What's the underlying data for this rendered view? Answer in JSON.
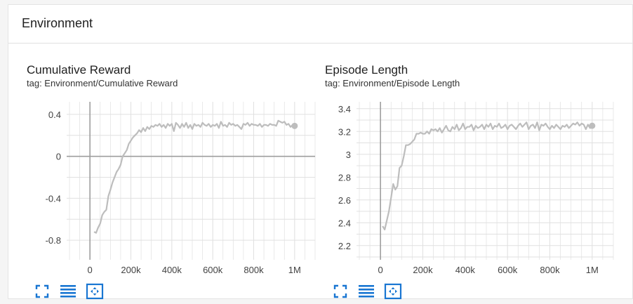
{
  "section": {
    "title": "Environment"
  },
  "charts": [
    {
      "title": "Cumulative Reward",
      "tag": "tag: Environment/Cumulative Reward",
      "toolbar": {
        "fit_icon": "fullscreen-icon",
        "toggle_icon": "lines-icon",
        "zoom_icon": "fit-domain-icon"
      }
    },
    {
      "title": "Episode Length",
      "tag": "tag: Environment/Episode Length",
      "toolbar": {
        "fit_icon": "fullscreen-icon",
        "toggle_icon": "lines-icon",
        "zoom_icon": "fit-domain-icon"
      }
    }
  ],
  "colors": {
    "accent": "#1976d2",
    "series": "#bdbdbd",
    "grid": "#e0e0e0",
    "axis": "#9e9e9e"
  },
  "chart_data": [
    {
      "type": "line",
      "title": "Cumulative Reward",
      "xlabel": "",
      "ylabel": "",
      "xlim": [
        -100000,
        1100000
      ],
      "ylim": [
        -0.96,
        0.52
      ],
      "xticks": [
        0,
        200000,
        400000,
        600000,
        800000,
        1000000
      ],
      "xtick_labels": [
        "0",
        "200k",
        "400k",
        "600k",
        "800k",
        "1M"
      ],
      "yticks": [
        -0.8,
        -0.4,
        0,
        0.4
      ],
      "ytick_labels": [
        "-0.8",
        "-0.4",
        "0",
        "0.4"
      ],
      "grid": true,
      "series": [
        {
          "x": [
            20000,
            30000,
            40000,
            50000,
            60000,
            70000,
            80000,
            90000,
            100000,
            110000,
            120000,
            130000,
            140000,
            150000,
            160000,
            170000,
            180000,
            190000,
            200000,
            210000,
            220000,
            230000,
            240000,
            250000,
            260000,
            270000,
            280000,
            290000,
            300000,
            310000,
            320000,
            330000,
            340000,
            350000,
            360000,
            370000,
            380000,
            390000,
            400000,
            410000,
            420000,
            430000,
            440000,
            450000,
            460000,
            470000,
            480000,
            490000,
            500000,
            510000,
            520000,
            530000,
            540000,
            550000,
            560000,
            570000,
            580000,
            590000,
            600000,
            610000,
            620000,
            630000,
            640000,
            650000,
            660000,
            670000,
            680000,
            690000,
            700000,
            710000,
            720000,
            730000,
            740000,
            750000,
            760000,
            770000,
            780000,
            790000,
            800000,
            810000,
            820000,
            830000,
            840000,
            850000,
            860000,
            870000,
            880000,
            890000,
            900000,
            910000,
            920000,
            930000,
            940000,
            950000,
            960000,
            970000,
            980000,
            990000,
            1000000
          ],
          "values": [
            -0.72,
            -0.73,
            -0.68,
            -0.64,
            -0.56,
            -0.53,
            -0.51,
            -0.38,
            -0.32,
            -0.25,
            -0.2,
            -0.15,
            -0.12,
            -0.08,
            0,
            0.03,
            0.06,
            0.12,
            0.15,
            0.18,
            0.2,
            0.22,
            0.25,
            0.23,
            0.27,
            0.24,
            0.28,
            0.26,
            0.29,
            0.28,
            0.3,
            0.29,
            0.31,
            0.28,
            0.3,
            0.27,
            0.31,
            0.29,
            0.31,
            0.24,
            0.32,
            0.3,
            0.27,
            0.31,
            0.28,
            0.32,
            0.27,
            0.3,
            0.26,
            0.31,
            0.29,
            0.3,
            0.28,
            0.32,
            0.3,
            0.29,
            0.31,
            0.28,
            0.3,
            0.29,
            0.31,
            0.27,
            0.33,
            0.29,
            0.3,
            0.28,
            0.32,
            0.3,
            0.31,
            0.29,
            0.3,
            0.28,
            0.26,
            0.31,
            0.3,
            0.32,
            0.29,
            0.31,
            0.3,
            0.3,
            0.29,
            0.31,
            0.28,
            0.3,
            0.3,
            0.29,
            0.31,
            0.3,
            0.3,
            0.29,
            0.34,
            0.33,
            0.32,
            0.33,
            0.3,
            0.31,
            0.28,
            0.3,
            0.29
          ]
        }
      ]
    },
    {
      "type": "line",
      "title": "Episode Length",
      "xlabel": "",
      "ylabel": "",
      "xlim": [
        -100000,
        1100000
      ],
      "ylim": [
        2.1,
        3.46
      ],
      "xticks": [
        0,
        200000,
        400000,
        600000,
        800000,
        1000000
      ],
      "xtick_labels": [
        "0",
        "200k",
        "400k",
        "600k",
        "800k",
        "1M"
      ],
      "yticks": [
        2.2,
        2.4,
        2.6,
        2.8,
        3.0,
        3.2,
        3.4
      ],
      "ytick_labels": [
        "2.2",
        "2.4",
        "2.6",
        "2.8",
        "3",
        "3.2",
        "3.4"
      ],
      "grid": true,
      "series": [
        {
          "x": [
            10000,
            20000,
            30000,
            40000,
            50000,
            60000,
            70000,
            80000,
            90000,
            100000,
            110000,
            120000,
            130000,
            140000,
            150000,
            160000,
            170000,
            180000,
            190000,
            200000,
            210000,
            220000,
            230000,
            240000,
            250000,
            260000,
            270000,
            280000,
            290000,
            300000,
            310000,
            320000,
            330000,
            340000,
            350000,
            360000,
            370000,
            380000,
            390000,
            400000,
            410000,
            420000,
            430000,
            440000,
            450000,
            460000,
            470000,
            480000,
            490000,
            500000,
            510000,
            520000,
            530000,
            540000,
            550000,
            560000,
            570000,
            580000,
            590000,
            600000,
            610000,
            620000,
            630000,
            640000,
            650000,
            660000,
            670000,
            680000,
            690000,
            700000,
            710000,
            720000,
            730000,
            740000,
            750000,
            760000,
            770000,
            780000,
            790000,
            800000,
            810000,
            820000,
            830000,
            840000,
            850000,
            860000,
            870000,
            880000,
            890000,
            900000,
            910000,
            920000,
            930000,
            940000,
            950000,
            960000,
            970000,
            980000,
            990000,
            1000000
          ],
          "values": [
            2.37,
            2.34,
            2.42,
            2.5,
            2.62,
            2.74,
            2.69,
            2.72,
            2.88,
            2.9,
            2.98,
            3.08,
            3.08,
            3.09,
            3.11,
            3.13,
            3.18,
            3.18,
            3.19,
            3.18,
            3.18,
            3.2,
            3.18,
            3.22,
            3.21,
            3.22,
            3.2,
            3.23,
            3.19,
            3.22,
            3.25,
            3.21,
            3.2,
            3.24,
            3.22,
            3.26,
            3.21,
            3.23,
            3.27,
            3.22,
            3.24,
            3.24,
            3.26,
            3.21,
            3.25,
            3.23,
            3.24,
            3.26,
            3.22,
            3.26,
            3.24,
            3.27,
            3.22,
            3.25,
            3.24,
            3.27,
            3.23,
            3.24,
            3.26,
            3.22,
            3.25,
            3.26,
            3.24,
            3.22,
            3.25,
            3.27,
            3.24,
            3.26,
            3.28,
            3.22,
            3.25,
            3.26,
            3.23,
            3.28,
            3.21,
            3.26,
            3.25,
            3.27,
            3.24,
            3.22,
            3.25,
            3.23,
            3.26,
            3.24,
            3.22,
            3.25,
            3.24,
            3.26,
            3.23,
            3.25,
            3.27,
            3.26,
            3.28,
            3.25,
            3.27,
            3.26,
            3.22,
            3.26,
            3.23,
            3.25
          ]
        }
      ]
    }
  ]
}
